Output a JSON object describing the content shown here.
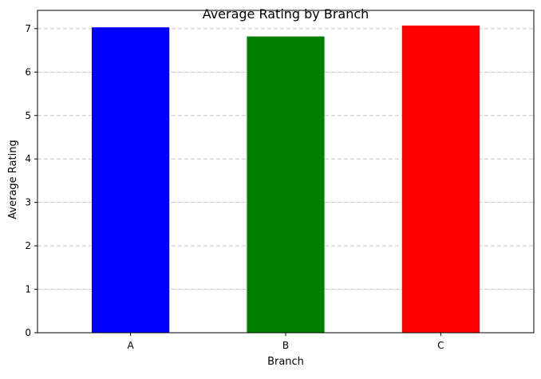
{
  "chart_data": {
    "type": "bar",
    "title": "Average Rating by Branch",
    "xlabel": "Branch",
    "ylabel": "Average Rating",
    "categories": [
      "A",
      "B",
      "C"
    ],
    "values": [
      7.03,
      6.82,
      7.07
    ],
    "colors": [
      "#0000ff",
      "#008000",
      "#ff0000"
    ],
    "ylim": [
      0,
      7.42
    ],
    "yticks": [
      0,
      1,
      2,
      3,
      4,
      5,
      6,
      7
    ],
    "grid": "y-axis dashed",
    "legend": "none"
  }
}
